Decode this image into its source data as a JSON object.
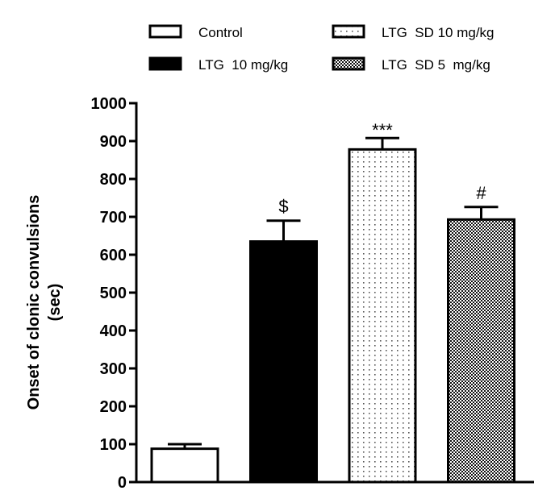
{
  "chart_data": {
    "type": "bar",
    "title": "",
    "xlabel": "",
    "ylabel": "Onset of clonic convulsions",
    "ylabel_line2": "(sec)",
    "ylim": [
      0,
      1000
    ],
    "yticks": [
      0,
      100,
      200,
      300,
      400,
      500,
      600,
      700,
      800,
      900,
      1000
    ],
    "grid": false,
    "legend_position": "top",
    "categories": [
      "Control",
      "LTG  10 mg/kg",
      "LTG  SD 10 mg/kg",
      "LTG  SD 5  mg/kg"
    ],
    "values": [
      88,
      635,
      878,
      693
    ],
    "errors": [
      12,
      55,
      30,
      33
    ],
    "annotations": [
      "",
      "$",
      "***",
      "#"
    ],
    "fills": [
      "white",
      "black",
      "dots",
      "checker"
    ],
    "legend": [
      {
        "label": "Control",
        "fill": "white"
      },
      {
        "label": "LTG  SD 10 mg/kg",
        "fill": "dots"
      },
      {
        "label": "LTG  10 mg/kg",
        "fill": "black"
      },
      {
        "label": "LTG  SD 5  mg/kg",
        "fill": "checker"
      }
    ]
  }
}
